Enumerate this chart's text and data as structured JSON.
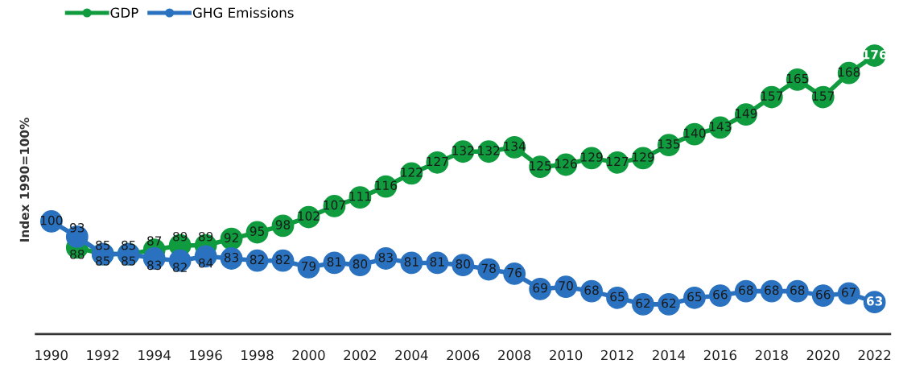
{
  "chart_data": {
    "type": "line",
    "ylabel": "Index 1990=100%",
    "x": [
      1990,
      1991,
      1992,
      1993,
      1994,
      1995,
      1996,
      1997,
      1998,
      1999,
      2000,
      2001,
      2002,
      2003,
      2004,
      2005,
      2006,
      2007,
      2008,
      2009,
      2010,
      2011,
      2012,
      2013,
      2014,
      2015,
      2016,
      2017,
      2018,
      2019,
      2020,
      2021,
      2022
    ],
    "series": [
      {
        "name": "GDP",
        "color": "#0f9b3e",
        "values": [
          null,
          88,
          85,
          85,
          87,
          89,
          89,
          92,
          95,
          98,
          102,
          107,
          111,
          116,
          122,
          127,
          132,
          132,
          134,
          125,
          126,
          129,
          127,
          129,
          135,
          140,
          143,
          149,
          157,
          165,
          157,
          168,
          176
        ]
      },
      {
        "name": "GHG Emissions",
        "color": "#2a72c0",
        "values": [
          100,
          93,
          85,
          85,
          83,
          82,
          84,
          83,
          82,
          82,
          79,
          81,
          80,
          83,
          81,
          81,
          80,
          78,
          76,
          69,
          70,
          68,
          65,
          62,
          62,
          65,
          66,
          68,
          68,
          68,
          66,
          67,
          63
        ]
      }
    ],
    "xlim": [
      1989.4,
      2022.6
    ],
    "xticks": [
      1990,
      1992,
      1994,
      1996,
      1998,
      2000,
      2002,
      2004,
      2006,
      2008,
      2010,
      2012,
      2014,
      2016,
      2018,
      2020,
      2022
    ],
    "tick_labels": "x",
    "data_labels": true,
    "legend": "top left",
    "marker": "circle",
    "line_style": "solid",
    "grid": false
  }
}
